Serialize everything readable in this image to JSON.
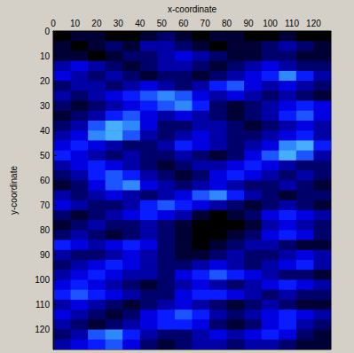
{
  "chart_data": {
    "type": "heatmap",
    "x_label": "x-coordinate",
    "y_label": "y-coordinate",
    "xlim": [
      0,
      128
    ],
    "ylim": [
      0,
      128
    ],
    "xticks": [
      0,
      10,
      20,
      30,
      40,
      50,
      60,
      70,
      80,
      90,
      100,
      110,
      120
    ],
    "yticks": [
      0,
      10,
      20,
      30,
      40,
      50,
      60,
      70,
      80,
      90,
      100,
      110,
      120
    ],
    "grid": false,
    "x_edges": [
      0,
      8,
      16,
      24,
      32,
      40,
      48,
      56,
      64,
      72,
      80,
      88,
      96,
      104,
      112,
      120,
      128
    ],
    "y_edges": [
      0,
      4,
      8,
      12,
      16,
      20,
      24,
      28,
      32,
      36,
      40,
      44,
      48,
      52,
      56,
      60,
      64,
      68,
      72,
      76,
      80,
      84,
      88,
      92,
      96,
      100,
      104,
      108,
      112,
      116,
      120,
      124,
      128
    ],
    "zlim": [
      0,
      9
    ],
    "colors": [
      "#000000",
      "#00007a",
      "#0000ff",
      "#2a7fff",
      "#5fd3ff"
    ],
    "cells": [
      [
        0,
        1,
        1,
        0,
        0,
        1,
        2,
        1,
        0,
        1,
        1,
        0,
        0,
        1,
        0,
        0
      ],
      [
        1,
        0,
        1,
        2,
        1,
        3,
        3,
        2,
        1,
        0,
        1,
        1,
        2,
        3,
        2,
        1
      ],
      [
        1,
        1,
        0,
        1,
        2,
        2,
        3,
        4,
        3,
        2,
        1,
        1,
        2,
        2,
        1,
        1
      ],
      [
        3,
        4,
        3,
        2,
        1,
        2,
        3,
        3,
        2,
        1,
        2,
        3,
        4,
        3,
        2,
        2
      ],
      [
        4,
        3,
        2,
        3,
        2,
        1,
        2,
        2,
        1,
        2,
        3,
        4,
        5,
        7,
        5,
        3
      ],
      [
        2,
        3,
        3,
        2,
        3,
        4,
        3,
        2,
        3,
        5,
        6,
        4,
        3,
        4,
        3,
        2
      ],
      [
        3,
        2,
        3,
        4,
        5,
        6,
        7,
        6,
        4,
        3,
        4,
        3,
        2,
        3,
        2,
        1
      ],
      [
        2,
        1,
        2,
        3,
        4,
        5,
        6,
        7,
        5,
        2,
        1,
        2,
        3,
        4,
        5,
        4
      ],
      [
        1,
        2,
        3,
        5,
        6,
        4,
        3,
        4,
        3,
        2,
        1,
        2,
        3,
        5,
        6,
        4
      ],
      [
        2,
        3,
        6,
        8,
        7,
        4,
        2,
        2,
        3,
        3,
        2,
        1,
        2,
        3,
        4,
        3
      ],
      [
        3,
        4,
        7,
        8,
        6,
        3,
        2,
        3,
        4,
        3,
        2,
        2,
        3,
        4,
        5,
        3
      ],
      [
        4,
        5,
        4,
        3,
        2,
        2,
        3,
        5,
        4,
        3,
        2,
        3,
        4,
        7,
        8,
        5
      ],
      [
        5,
        4,
        3,
        2,
        3,
        2,
        2,
        3,
        2,
        1,
        2,
        4,
        6,
        8,
        6,
        3
      ],
      [
        3,
        4,
        5,
        4,
        3,
        2,
        1,
        2,
        3,
        3,
        4,
        5,
        4,
        3,
        2,
        2
      ],
      [
        2,
        3,
        5,
        6,
        5,
        3,
        2,
        1,
        2,
        4,
        5,
        4,
        3,
        2,
        3,
        2
      ],
      [
        1,
        2,
        4,
        6,
        7,
        4,
        3,
        2,
        3,
        4,
        3,
        2,
        2,
        3,
        2,
        1
      ],
      [
        3,
        2,
        3,
        4,
        3,
        2,
        3,
        4,
        6,
        7,
        5,
        3,
        2,
        1,
        2,
        2
      ],
      [
        4,
        3,
        2,
        2,
        3,
        5,
        6,
        5,
        4,
        3,
        2,
        1,
        2,
        3,
        2,
        1
      ],
      [
        2,
        1,
        2,
        3,
        4,
        5,
        4,
        3,
        1,
        0,
        1,
        2,
        4,
        5,
        4,
        3
      ],
      [
        1,
        2,
        3,
        2,
        2,
        3,
        2,
        1,
        0,
        0,
        0,
        1,
        3,
        4,
        3,
        2
      ],
      [
        2,
        3,
        2,
        1,
        2,
        3,
        2,
        1,
        0,
        0,
        1,
        2,
        4,
        5,
        4,
        2
      ],
      [
        5,
        4,
        3,
        4,
        5,
        4,
        2,
        1,
        0,
        1,
        2,
        3,
        3,
        2,
        1,
        1
      ],
      [
        3,
        2,
        2,
        3,
        4,
        3,
        2,
        1,
        1,
        2,
        3,
        2,
        2,
        3,
        4,
        3
      ],
      [
        2,
        3,
        4,
        5,
        4,
        3,
        2,
        2,
        3,
        4,
        3,
        2,
        3,
        4,
        5,
        3
      ],
      [
        3,
        4,
        5,
        4,
        3,
        3,
        2,
        4,
        5,
        6,
        5,
        4,
        3,
        2,
        2,
        1
      ],
      [
        4,
        5,
        4,
        3,
        2,
        1,
        2,
        3,
        4,
        3,
        2,
        3,
        4,
        5,
        4,
        3
      ],
      [
        5,
        6,
        5,
        4,
        3,
        2,
        2,
        4,
        5,
        5,
        4,
        3,
        2,
        3,
        2,
        2
      ],
      [
        3,
        4,
        3,
        2,
        1,
        2,
        3,
        4,
        3,
        2,
        1,
        2,
        3,
        2,
        1,
        1
      ],
      [
        4,
        3,
        2,
        1,
        2,
        4,
        5,
        6,
        5,
        3,
        2,
        3,
        4,
        5,
        4,
        3
      ],
      [
        3,
        2,
        1,
        2,
        3,
        4,
        5,
        5,
        4,
        2,
        1,
        2,
        4,
        5,
        3,
        2
      ],
      [
        2,
        3,
        6,
        7,
        5,
        3,
        2,
        2,
        3,
        4,
        3,
        4,
        5,
        4,
        2,
        1
      ],
      [
        3,
        4,
        5,
        6,
        4,
        2,
        1,
        2,
        3,
        3,
        2,
        3,
        3,
        2,
        1,
        1
      ]
    ]
  }
}
